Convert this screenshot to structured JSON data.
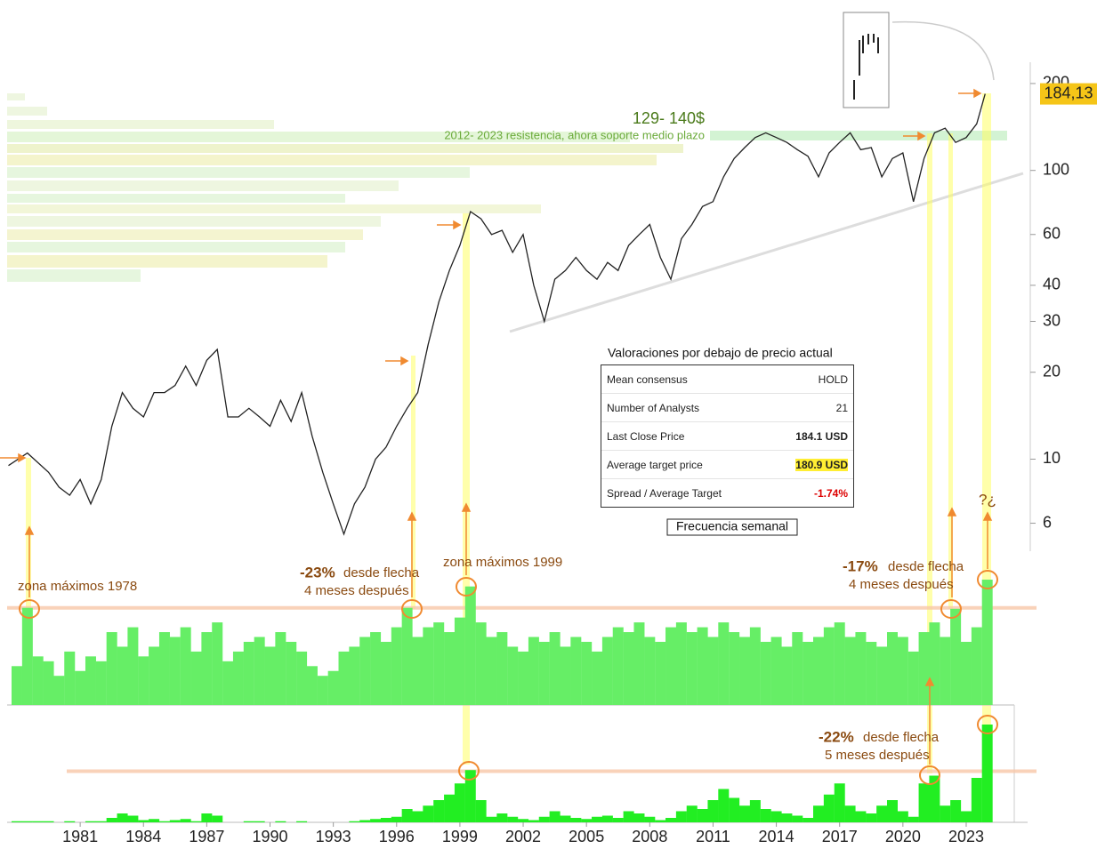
{
  "chart_data": [
    {
      "type": "line",
      "log_y": true,
      "color": "#222222",
      "x": [
        1977.6,
        1978.5,
        1979.5,
        1980,
        1980.5,
        1981,
        1981.5,
        1982,
        1982.5,
        1983,
        1983.5,
        1984,
        1984.5,
        1985,
        1985.5,
        1986,
        1986.5,
        1987,
        1987.5,
        1988,
        1988.5,
        1989,
        1989.5,
        1990,
        1990.5,
        1991,
        1991.5,
        1992,
        1992.5,
        1993,
        1993.5,
        1994,
        1994.5,
        1995,
        1995.5,
        1996,
        1996.5,
        1997,
        1997.5,
        1998,
        1998.5,
        1999,
        1999.5,
        2000,
        2000.5,
        2001,
        2001.5,
        2002,
        2002.5,
        2003,
        2003.5,
        2004,
        2004.5,
        2005,
        2005.5,
        2006,
        2006.5,
        2007,
        2007.5,
        2008,
        2008.5,
        2009,
        2009.5,
        2010,
        2010.5,
        2011,
        2011.5,
        2012,
        2012.5,
        2013,
        2013.5,
        2014,
        2014.5,
        2015,
        2015.5,
        2016,
        2016.5,
        2017,
        2017.5,
        2018,
        2018.5,
        2019,
        2019.5,
        2020,
        2020.5,
        2021,
        2021.5,
        2022,
        2022.5,
        2023,
        2023.5,
        2023.9
      ],
      "values": [
        9.5,
        10.5,
        9,
        8,
        7.5,
        8.5,
        7,
        8.5,
        13,
        17,
        15,
        14,
        17,
        17,
        18,
        21,
        18,
        22,
        24,
        14,
        14,
        15,
        14,
        13,
        16,
        13.5,
        17,
        12,
        9,
        7,
        5.5,
        7,
        8,
        10,
        11,
        13,
        15,
        17,
        25,
        35,
        45,
        55,
        72,
        68,
        60,
        62,
        52,
        60,
        40,
        30,
        42,
        45,
        50,
        45,
        42,
        48,
        45,
        55,
        60,
        65,
        50,
        42,
        58,
        65,
        75,
        78,
        95,
        110,
        120,
        130,
        135,
        130,
        125,
        118,
        112,
        95,
        115,
        125,
        135,
        118,
        120,
        95,
        110,
        115,
        78,
        110,
        135,
        140,
        125,
        130,
        145,
        184.13
      ],
      "xlim": [
        1977.6,
        2025.7
      ],
      "ylim": [
        4.8,
        237
      ],
      "yticks": [
        6,
        10,
        20,
        30,
        40,
        60,
        100,
        200
      ],
      "last_price": {
        "value": 184.13,
        "label": "184,13"
      },
      "annotations": {
        "zone": "129- 140$",
        "zone_note": "2012- 2023 resistencia, ahora soporte medio plazo",
        "max1978": "zona máximos 1978",
        "max1999": "zona máximos 1999",
        "pct1": "-23%",
        "pct1_text": "desde flecha",
        "pct1_after": "4 meses después",
        "pct2": "-17%",
        "pct2_text": "desde flecha",
        "pct2_after": "4 meses después",
        "pct3": "-22%",
        "pct3_text": "desde flecha",
        "pct3_after": "5 meses después",
        "question": "?¿",
        "frequency": "Frecuencia semanal"
      }
    },
    {
      "type": "bar",
      "color": "#66ee66",
      "ref_level": 100,
      "x": [
        1978,
        1978.5,
        1979,
        1979.5,
        1980,
        1980.5,
        1981,
        1981.5,
        1982,
        1982.5,
        1983,
        1983.5,
        1984,
        1984.5,
        1985,
        1985.5,
        1986,
        1986.5,
        1987,
        1987.5,
        1988,
        1988.5,
        1989,
        1989.5,
        1990,
        1990.5,
        1991,
        1991.5,
        1992,
        1992.5,
        1993,
        1993.5,
        1994,
        1994.5,
        1995,
        1995.5,
        1996,
        1996.5,
        1997,
        1997.5,
        1998,
        1998.5,
        1999,
        1999.5,
        2000,
        2000.5,
        2001,
        2001.5,
        2002,
        2002.5,
        2003,
        2003.5,
        2004,
        2004.5,
        2005,
        2005.5,
        2006,
        2006.5,
        2007,
        2007.5,
        2008,
        2008.5,
        2009,
        2009.5,
        2010,
        2010.5,
        2011,
        2011.5,
        2012,
        2012.5,
        2013,
        2013.5,
        2014,
        2014.5,
        2015,
        2015.5,
        2016,
        2016.5,
        2017,
        2017.5,
        2018,
        2018.5,
        2019,
        2019.5,
        2020,
        2020.5,
        2021,
        2021.5,
        2022,
        2022.5,
        2023,
        2023.5,
        2024
      ],
      "values": [
        40,
        100,
        50,
        45,
        30,
        55,
        35,
        50,
        45,
        75,
        60,
        80,
        50,
        60,
        75,
        70,
        80,
        55,
        75,
        85,
        45,
        55,
        65,
        70,
        60,
        75,
        65,
        55,
        40,
        30,
        35,
        55,
        60,
        70,
        75,
        65,
        80,
        100,
        70,
        80,
        85,
        75,
        90,
        122,
        85,
        70,
        75,
        60,
        55,
        70,
        65,
        75,
        60,
        70,
        65,
        55,
        70,
        80,
        75,
        85,
        70,
        65,
        80,
        85,
        75,
        80,
        70,
        85,
        75,
        70,
        80,
        65,
        70,
        60,
        75,
        65,
        70,
        80,
        85,
        70,
        75,
        65,
        60,
        75,
        70,
        55,
        75,
        85,
        70,
        99,
        65,
        80,
        129
      ],
      "xlim": [
        1977.6,
        2025.7
      ],
      "ylim": [
        0,
        140
      ]
    },
    {
      "type": "bar",
      "color": "#22ee22",
      "ref_level": 46,
      "x": [
        1978,
        1978.5,
        1979,
        1979.5,
        1980,
        1980.5,
        1981,
        1981.5,
        1982,
        1982.5,
        1983,
        1983.5,
        1984,
        1984.5,
        1985,
        1985.5,
        1986,
        1986.5,
        1987,
        1987.5,
        1988,
        1988.5,
        1989,
        1989.5,
        1990,
        1990.5,
        1991,
        1991.5,
        1992,
        1992.5,
        1993,
        1993.5,
        1994,
        1994.5,
        1995,
        1995.5,
        1996,
        1996.5,
        1997,
        1997.5,
        1998,
        1998.5,
        1999,
        1999.5,
        2000,
        2000.5,
        2001,
        2001.5,
        2002,
        2002.5,
        2003,
        2003.5,
        2004,
        2004.5,
        2005,
        2005.5,
        2006,
        2006.5,
        2007,
        2007.5,
        2008,
        2008.5,
        2009,
        2009.5,
        2010,
        2010.5,
        2011,
        2011.5,
        2012,
        2012.5,
        2013,
        2013.5,
        2014,
        2014.5,
        2015,
        2015.5,
        2016,
        2016.5,
        2017,
        2017.5,
        2018,
        2018.5,
        2019,
        2019.5,
        2020,
        2020.5,
        2021,
        2021.5,
        2022,
        2022.5,
        2023,
        2023.5,
        2024
      ],
      "values": [
        1,
        1,
        1,
        1,
        0,
        1,
        0,
        1,
        1,
        4,
        8,
        6,
        2,
        3,
        1,
        2,
        3,
        1,
        8,
        6,
        0,
        0,
        1,
        1,
        0,
        1,
        0,
        1,
        0,
        0,
        0,
        0,
        1,
        2,
        3,
        4,
        5,
        12,
        10,
        15,
        20,
        25,
        35,
        47,
        20,
        5,
        8,
        5,
        3,
        2,
        5,
        10,
        6,
        4,
        3,
        5,
        6,
        4,
        10,
        8,
        5,
        2,
        4,
        10,
        15,
        12,
        20,
        30,
        22,
        15,
        20,
        12,
        10,
        8,
        6,
        4,
        15,
        25,
        35,
        15,
        10,
        8,
        15,
        20,
        10,
        5,
        35,
        42,
        15,
        20,
        10,
        40,
        88
      ],
      "xlim": [
        1977.6,
        2025.7
      ],
      "ylim": [
        0,
        100
      ],
      "xticks": [
        1981,
        1984,
        1987,
        1990,
        1993,
        1996,
        1999,
        2002,
        2005,
        2008,
        2011,
        2014,
        2017,
        2020,
        2023
      ]
    }
  ],
  "table": {
    "title": "Valoraciones por debajo de precio actual",
    "rows": [
      [
        "Mean consensus",
        "HOLD"
      ],
      [
        "Number of Analysts",
        "21"
      ],
      [
        "Last Close Price",
        "184.1  USD"
      ],
      [
        "Average target price",
        "180.9  USD"
      ],
      [
        "Spread / Average Target",
        "-1.74%"
      ]
    ]
  }
}
